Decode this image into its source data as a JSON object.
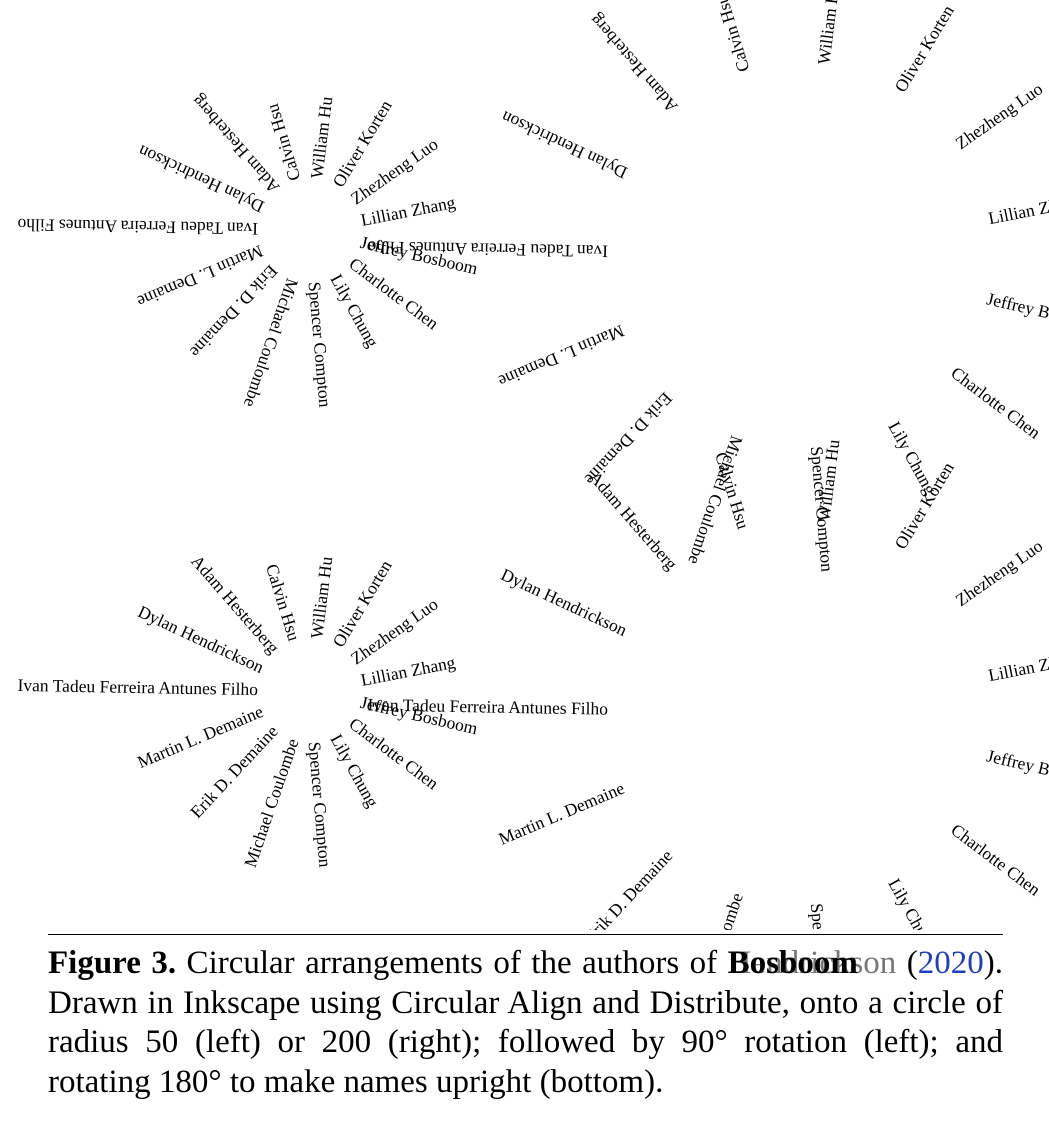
{
  "authors": [
    "Zhezheng Luo",
    "Lillian Zhang",
    "Jeffrey Bosboom",
    "Charlotte Chen",
    "Lily Chung",
    "Spencer Compton",
    "Michael Coulombe",
    "Erik D. Demaine",
    "Martin L. Demaine",
    "Ivan Tadeu Ferreira Antunes Filho",
    "Dylan Hendrickson",
    "Adam Hesterberg",
    "Calvin Hsu",
    "William Hu",
    "Oliver Korten"
  ],
  "panels": [
    {
      "id": "top-left",
      "radius_label": "radius 50",
      "upright": false
    },
    {
      "id": "top-right",
      "radius_label": "radius 200",
      "upright": false
    },
    {
      "id": "bottom-left",
      "radius_label": "radius 50",
      "upright": true
    },
    {
      "id": "bottom-right",
      "radius_label": "radius 200",
      "upright": true
    }
  ],
  "caption": {
    "label": "Figure 3.",
    "text_1": " Circular arrangements of the authors of ",
    "cite_overlap_a": "Hendrickson",
    "cite_overlap_b": "Bosboom",
    "year_open": "(",
    "year": "2020",
    "text_2": "). Drawn in Inkscape using Circular Align and Distribute, onto a circle of radius 50 (left) or 200 (right); followed by 90° rotation (left); and rotating 180° to make names upright (bottom).",
    "link_color": "#1f3fbf"
  }
}
